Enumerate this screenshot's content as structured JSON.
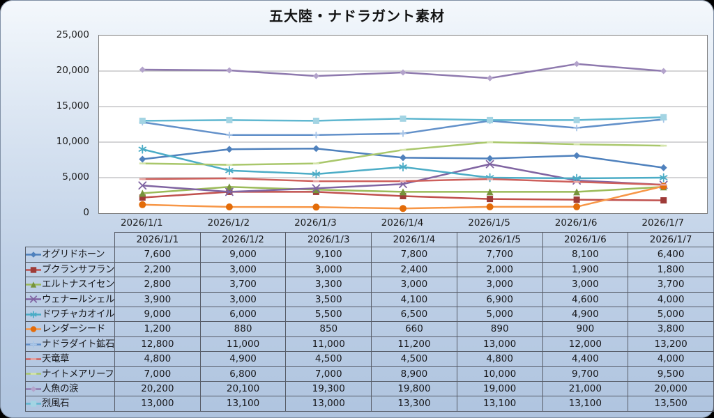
{
  "title": "五大陸・ナドラガント素材",
  "y_axis": {
    "tick_labels": [
      "25,000",
      "20,000",
      "15,000",
      "10,000",
      "5,000",
      "0"
    ]
  },
  "chart_data": {
    "type": "line",
    "title": "五大陸・ナドラガント素材",
    "xlabel": "",
    "ylabel": "",
    "ylim": [
      0,
      25000
    ],
    "ytick_step": 5000,
    "grid": true,
    "legend_position": "table-left-column",
    "categories": [
      "2026/1/1",
      "2026/1/2",
      "2026/1/3",
      "2026/1/4",
      "2026/1/5",
      "2026/1/6",
      "2026/1/7"
    ],
    "series": [
      {
        "name": "オグリドホーン",
        "color": "#4F81BD",
        "marker": "diamond",
        "marker_color": "#4F81BD",
        "marker_size": 5,
        "values": [
          7600,
          9000,
          9100,
          7800,
          7700,
          8100,
          6400
        ],
        "display": [
          "7,600",
          "9,000",
          "9,100",
          "7,800",
          "7,700",
          "8,100",
          "6,400"
        ]
      },
      {
        "name": "ブクランサフラン",
        "color": "#C0504D",
        "marker": "square",
        "marker_color": "#9E3B38",
        "marker_size": 4.5,
        "values": [
          2200,
          3000,
          3000,
          2400,
          2000,
          1900,
          1800
        ],
        "display": [
          "2,200",
          "3,000",
          "3,000",
          "2,400",
          "2,000",
          "1,900",
          "1,800"
        ]
      },
      {
        "name": "エルトナスイセン",
        "color": "#9BBB59",
        "marker": "triangle",
        "marker_color": "#77933C",
        "marker_size": 5,
        "values": [
          2800,
          3700,
          3300,
          3000,
          3000,
          3000,
          3700
        ],
        "display": [
          "2,800",
          "3,700",
          "3,300",
          "3,000",
          "3,000",
          "3,000",
          "3,700"
        ]
      },
      {
        "name": "ウェナールシェル",
        "color": "#8064A2",
        "marker": "x",
        "marker_color": "#8064A2",
        "marker_size": 5,
        "values": [
          3900,
          3000,
          3500,
          4100,
          6900,
          4600,
          4000
        ],
        "display": [
          "3,900",
          "3,000",
          "3,500",
          "4,100",
          "6,900",
          "4,600",
          "4,000"
        ]
      },
      {
        "name": "ドワチャカオイル",
        "color": "#4BACC6",
        "marker": "asterisk",
        "marker_color": "#4BACC6",
        "marker_size": 5.5,
        "values": [
          9000,
          6000,
          5500,
          6500,
          5000,
          4900,
          5000
        ],
        "display": [
          "9,000",
          "6,000",
          "5,500",
          "6,500",
          "5,000",
          "4,900",
          "5,000"
        ]
      },
      {
        "name": "レンダーシード",
        "color": "#F79646",
        "marker": "circle",
        "marker_color": "#E36C09",
        "marker_size": 5,
        "values": [
          1200,
          880,
          850,
          660,
          890,
          900,
          3800
        ],
        "display": [
          "1,200",
          "880",
          "850",
          "660",
          "890",
          "900",
          "3,800"
        ]
      },
      {
        "name": "ナドラダイト鉱石",
        "color": "#6290C9",
        "marker": "plus",
        "marker_color": "#A7C5E8",
        "marker_size": 4,
        "values": [
          12800,
          11000,
          11000,
          11200,
          13000,
          12000,
          13200
        ],
        "display": [
          "12,800",
          "11,000",
          "11,000",
          "11,200",
          "13,000",
          "12,000",
          "13,200"
        ]
      },
      {
        "name": "天竜草",
        "color": "#CE605C",
        "marker": "dash",
        "marker_color": "#E8A6A3",
        "marker_size": 4.5,
        "values": [
          4800,
          4900,
          4500,
          4500,
          4800,
          4400,
          4000
        ],
        "display": [
          "4,800",
          "4,900",
          "4,500",
          "4,500",
          "4,800",
          "4,400",
          "4,000"
        ]
      },
      {
        "name": "ナイトメアリーフ",
        "color": "#A9C76B",
        "marker": "dash",
        "marker_color": "#D5E5AC",
        "marker_size": 4.5,
        "values": [
          7000,
          6800,
          7000,
          8900,
          10000,
          9700,
          9500
        ],
        "display": [
          "7,000",
          "6,800",
          "7,000",
          "8,900",
          "10,000",
          "9,700",
          "9,500"
        ]
      },
      {
        "name": "人魚の涙",
        "color": "#8E79AE",
        "marker": "diamond",
        "marker_color": "#B3A3CB",
        "marker_size": 4.5,
        "values": [
          20200,
          20100,
          19300,
          19800,
          19000,
          21000,
          20000
        ],
        "display": [
          "20,200",
          "20,100",
          "19,300",
          "19,800",
          "19,000",
          "21,000",
          "20,000"
        ]
      },
      {
        "name": "烈風石",
        "color": "#5FB7D0",
        "marker": "square",
        "marker_color": "#A3D4E3",
        "marker_size": 4.5,
        "values": [
          13000,
          13100,
          13000,
          13300,
          13100,
          13100,
          13500
        ],
        "display": [
          "13,000",
          "13,100",
          "13,000",
          "13,300",
          "13,100",
          "13,100",
          "13,500"
        ]
      }
    ]
  },
  "style": {
    "plot_background": "#FFFFFF",
    "gridline_color": "#A8A8AC",
    "card_gradient_top": "#F4F8FC",
    "card_gradient_bottom": "#AFC4DF",
    "table_border_color": "#565b66",
    "outside_color": "#000000"
  }
}
